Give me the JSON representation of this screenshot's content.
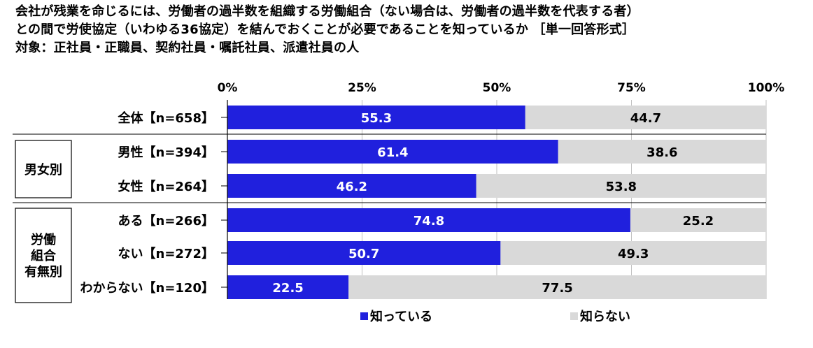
{
  "title_lines": [
    "会社が残業を命じるには、労働者の過半数を組織する労働組合（ない場合は、労働者の過半数を代表する者）",
    "との間で労使協定（いわゆる36協定）を結んでおくことが必要であることを知っているか ［単一回答形式］",
    "対象：正社員・正職員、契約社員・嘱託社員、派遣社員の人"
  ],
  "colors": {
    "known": "#2020dd",
    "unknown": "#d9d9d9",
    "axis": "#000000"
  },
  "chart_data": {
    "type": "bar",
    "orientation": "horizontal-stacked-100",
    "title": "会社が残業を命じるには、労働者の過半数を組織する労働組合（ない場合は、労働者の過半数を代表する者）との間で労使協定（いわゆる36協定）を結んでおくことが必要であることを知っているか ［単一回答形式］",
    "subtitle": "対象：正社員・正職員、契約社員・嘱託社員、派遣社員の人",
    "xlim": [
      0,
      100
    ],
    "x_ticks": [
      "0%",
      "25%",
      "50%",
      "75%",
      "100%"
    ],
    "categories": [
      "全体【n=658】",
      "男性【n=394】",
      "女性【n=264】",
      "ある【n=266】",
      "ない【n=272】",
      "わからない【n=120】"
    ],
    "groups": [
      {
        "label": [
          "男女別"
        ],
        "rows": [
          1,
          2
        ]
      },
      {
        "label": [
          "労働",
          "組合",
          "有無別"
        ],
        "rows": [
          3,
          4,
          5
        ]
      }
    ],
    "series": [
      {
        "name": "知っている",
        "values": [
          55.3,
          61.4,
          46.2,
          74.8,
          50.7,
          22.5
        ]
      },
      {
        "name": "知らない",
        "values": [
          44.7,
          38.6,
          53.8,
          25.2,
          49.3,
          77.5
        ]
      }
    ],
    "legend": "bottom-center",
    "grid": true
  }
}
